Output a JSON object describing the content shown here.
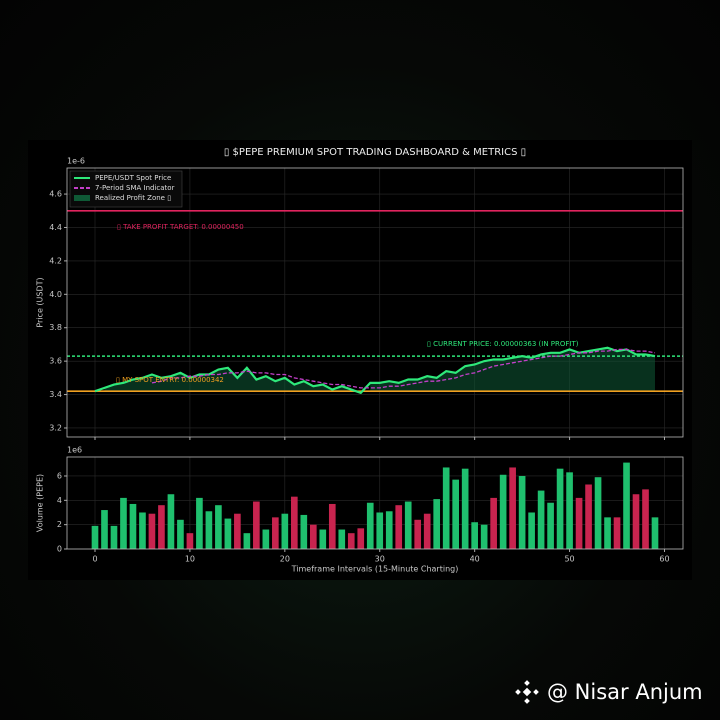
{
  "watermark": "@ Nisar Anjum",
  "chart_data": [
    {
      "type": "line",
      "title": "▯ $PEPE PREMIUM SPOT TRADING DASHBOARD & METRICS ▯",
      "ylabel": "Price (USDT)",
      "y_offset_label": "1e-6",
      "x": [
        0,
        1,
        2,
        3,
        4,
        5,
        6,
        7,
        8,
        9,
        10,
        11,
        12,
        13,
        14,
        15,
        16,
        17,
        18,
        19,
        20,
        21,
        22,
        23,
        24,
        25,
        26,
        27,
        28,
        29,
        30,
        31,
        32,
        33,
        34,
        35,
        36,
        37,
        38,
        39,
        40,
        41,
        42,
        43,
        44,
        45,
        46,
        47,
        48,
        49,
        50,
        51,
        52,
        53,
        54,
        55,
        56,
        57,
        58,
        59
      ],
      "xlim": [
        -2.95,
        61.95
      ],
      "xticks": [
        0,
        10,
        20,
        30,
        40,
        50,
        60
      ],
      "xtick_labels": false,
      "ylim": [
        3.146,
        4.756
      ],
      "yticks": [
        3.2,
        3.4,
        3.6,
        3.8,
        {
          "value": 4,
          "label": "4.0"
        },
        4.2,
        4.4,
        4.6
      ],
      "grid": true,
      "legend": "upper left",
      "series": [
        {
          "name": "PEPE/USDT Spot Price",
          "color": "#2ee87a",
          "dashed": false,
          "values": [
            3.42,
            3.44,
            3.46,
            3.47,
            3.49,
            3.5,
            3.52,
            3.5,
            3.51,
            3.53,
            3.5,
            3.52,
            3.52,
            3.55,
            3.56,
            3.5,
            3.56,
            3.49,
            3.51,
            3.48,
            3.5,
            3.46,
            3.48,
            3.45,
            3.46,
            3.43,
            3.45,
            3.43,
            3.41,
            3.47,
            3.47,
            3.48,
            3.47,
            3.49,
            3.49,
            3.51,
            3.5,
            3.54,
            3.53,
            3.57,
            3.58,
            3.6,
            3.61,
            3.61,
            3.62,
            3.63,
            3.62,
            3.64,
            3.65,
            3.65,
            3.67,
            3.65,
            3.66,
            3.67,
            3.68,
            3.66,
            3.67,
            3.64,
            3.64,
            3.63
          ]
        },
        {
          "name": "7-Period SMA Indicator",
          "color": "#c33fc9",
          "dashed": true,
          "values": [
            null,
            null,
            null,
            null,
            null,
            null,
            3.47,
            3.48,
            3.5,
            3.5,
            3.51,
            3.51,
            3.52,
            3.52,
            3.53,
            3.53,
            3.54,
            3.53,
            3.53,
            3.52,
            3.52,
            3.5,
            3.49,
            3.48,
            3.47,
            3.46,
            3.46,
            3.45,
            3.44,
            3.44,
            3.44,
            3.45,
            3.45,
            3.46,
            3.47,
            3.48,
            3.48,
            3.49,
            3.5,
            3.52,
            3.53,
            3.55,
            3.57,
            3.58,
            3.59,
            3.6,
            3.61,
            3.62,
            3.63,
            3.63,
            3.64,
            3.65,
            3.65,
            3.66,
            3.66,
            3.67,
            3.67,
            3.66,
            3.66,
            3.65
          ]
        }
      ],
      "fill": {
        "name": "Realized Profit Zone ▯",
        "color": "#0f5a36",
        "fill_to": 3.42
      },
      "hlines": [
        {
          "value": 4.5,
          "color": "#e0245e",
          "dashed": false,
          "label": "▯ TAKE PROFIT TARGET: 0.00000450"
        },
        {
          "value": 3.42,
          "color": "#f0a020",
          "dashed": false,
          "label": "▯ MY SPOT ENTRY: 0.00000342"
        },
        {
          "value": 3.63,
          "color": "#2ee87a",
          "dashed": true,
          "label": "▯ CURRENT PRICE: 0.00000363 (IN PROFIT)"
        }
      ]
    },
    {
      "type": "bar",
      "ylabel": "Volume (PEPE)",
      "xlabel": "Timeframe Intervals (15-Minute Charting)",
      "y_offset_label": "1e6",
      "x": [
        0,
        1,
        2,
        3,
        4,
        5,
        6,
        7,
        8,
        9,
        10,
        11,
        12,
        13,
        14,
        15,
        16,
        17,
        18,
        19,
        20,
        21,
        22,
        23,
        24,
        25,
        26,
        27,
        28,
        29,
        30,
        31,
        32,
        33,
        34,
        35,
        36,
        37,
        38,
        39,
        40,
        41,
        42,
        43,
        44,
        45,
        46,
        47,
        48,
        49,
        50,
        51,
        52,
        53,
        54,
        55,
        56,
        57,
        58,
        59
      ],
      "xlim": [
        -2.95,
        61.95
      ],
      "xticks": [
        0,
        10,
        20,
        30,
        40,
        50,
        60
      ],
      "ylim": [
        0,
        7.56
      ],
      "yticks": [
        0,
        2,
        4,
        6
      ],
      "grid": true,
      "values": [
        1.9,
        3.2,
        1.9,
        4.2,
        3.7,
        3.0,
        2.9,
        3.6,
        4.5,
        2.4,
        1.3,
        4.2,
        3.1,
        3.6,
        2.5,
        2.9,
        1.3,
        3.9,
        1.6,
        2.6,
        2.9,
        4.3,
        2.8,
        2.0,
        1.6,
        3.7,
        1.6,
        1.3,
        1.7,
        3.8,
        3.0,
        3.1,
        3.6,
        3.9,
        2.4,
        2.9,
        4.1,
        6.7,
        5.7,
        6.6,
        2.2,
        2.0,
        4.2,
        6.1,
        6.7,
        6.0,
        3.0,
        4.8,
        3.8,
        6.6,
        6.3,
        4.2,
        5.3,
        5.9,
        2.6,
        2.6,
        7.1,
        4.5,
        4.9,
        2.6
      ],
      "colors": [
        "#1fc06e",
        "#1fc06e",
        "#1fc06e",
        "#1fc06e",
        "#1fc06e",
        "#1fc06e",
        "#c8244f",
        "#c8244f",
        "#1fc06e",
        "#1fc06e",
        "#c8244f",
        "#1fc06e",
        "#1fc06e",
        "#1fc06e",
        "#1fc06e",
        "#c8244f",
        "#1fc06e",
        "#c8244f",
        "#1fc06e",
        "#c8244f",
        "#1fc06e",
        "#c8244f",
        "#1fc06e",
        "#c8244f",
        "#1fc06e",
        "#c8244f",
        "#1fc06e",
        "#c8244f",
        "#c8244f",
        "#1fc06e",
        "#1fc06e",
        "#1fc06e",
        "#c8244f",
        "#1fc06e",
        "#c8244f",
        "#c8244f",
        "#1fc06e",
        "#1fc06e",
        "#1fc06e",
        "#1fc06e",
        "#1fc06e",
        "#1fc06e",
        "#c8244f",
        "#1fc06e",
        "#c8244f",
        "#1fc06e",
        "#1fc06e",
        "#1fc06e",
        "#1fc06e",
        "#1fc06e",
        "#1fc06e",
        "#c8244f",
        "#c8244f",
        "#1fc06e",
        "#1fc06e",
        "#c8244f",
        "#1fc06e",
        "#c8244f",
        "#c8244f",
        "#1fc06e"
      ]
    }
  ]
}
